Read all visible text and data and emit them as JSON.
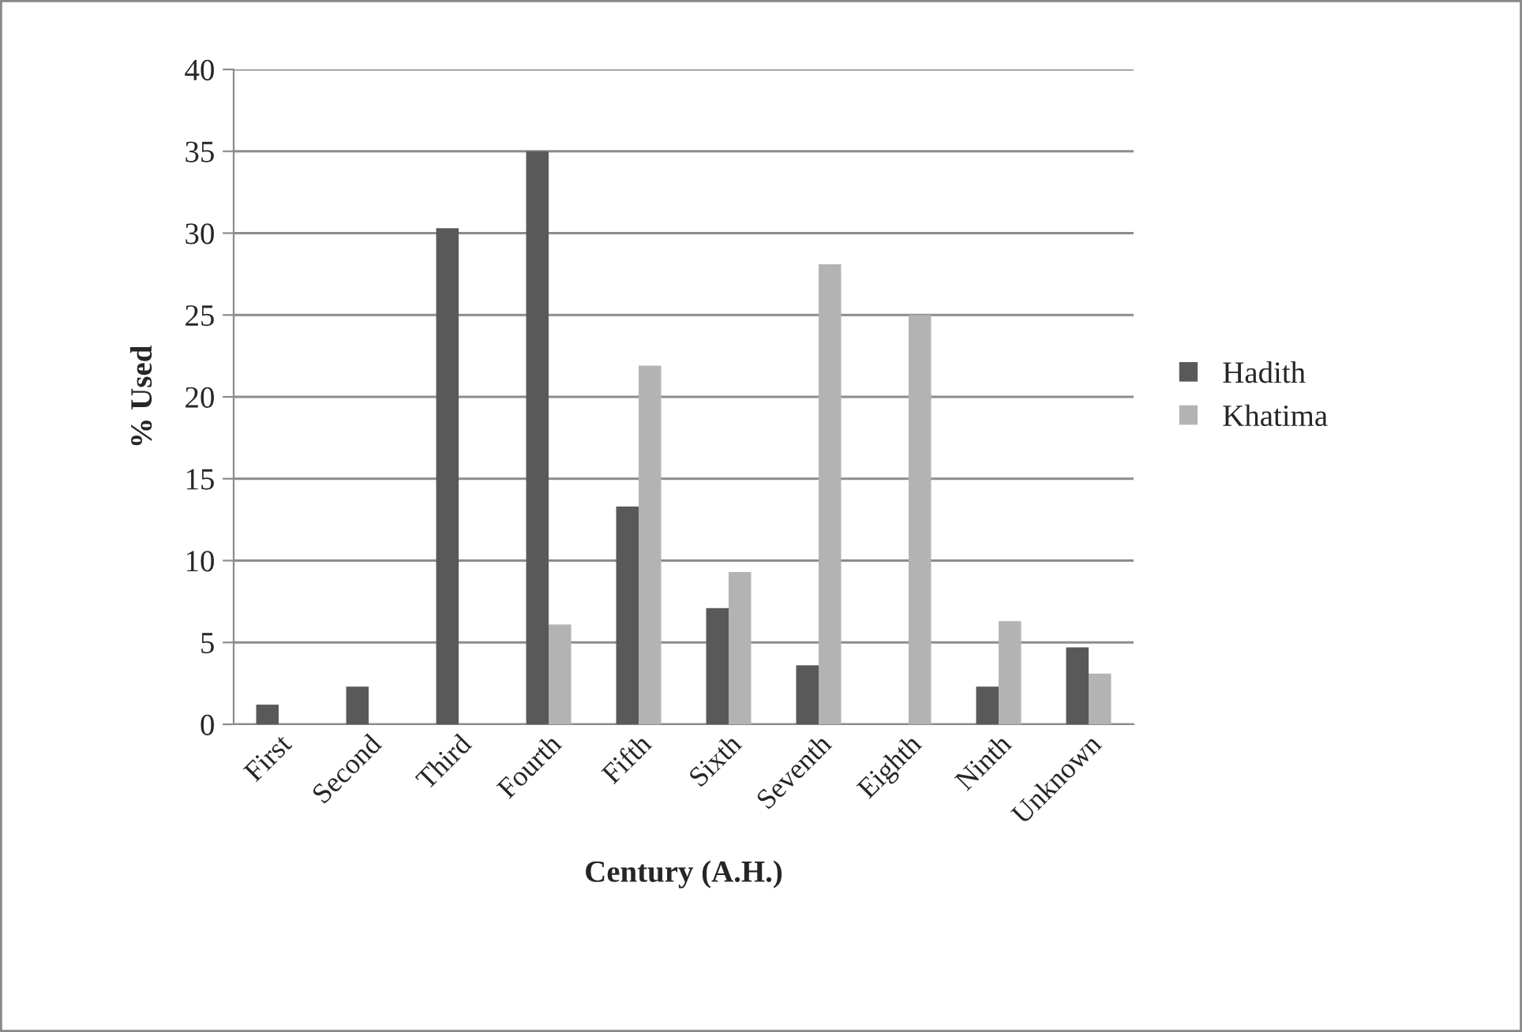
{
  "chart_data": {
    "type": "bar",
    "xlabel": "Century (A.H.)",
    "ylabel": "% Used",
    "categories": [
      "First",
      "Second",
      "Third",
      "Fourth",
      "Fifth",
      "Sixth",
      "Seventh",
      "Eighth",
      "Ninth",
      "Unknown"
    ],
    "series": [
      {
        "name": "Hadith",
        "color": "#595959",
        "values": [
          1.2,
          2.3,
          30.3,
          35,
          13.3,
          7.1,
          3.6,
          null,
          2.3,
          4.7
        ]
      },
      {
        "name": "Khatima",
        "color": "#b3b3b3",
        "values": [
          null,
          null,
          null,
          6.1,
          21.9,
          9.3,
          28.1,
          25.0,
          6.3,
          3.1
        ]
      }
    ],
    "ylim": [
      0,
      40
    ],
    "yticks": [
      0,
      5,
      10,
      15,
      20,
      25,
      30,
      35,
      40
    ],
    "grid": "y",
    "legend": "right"
  }
}
